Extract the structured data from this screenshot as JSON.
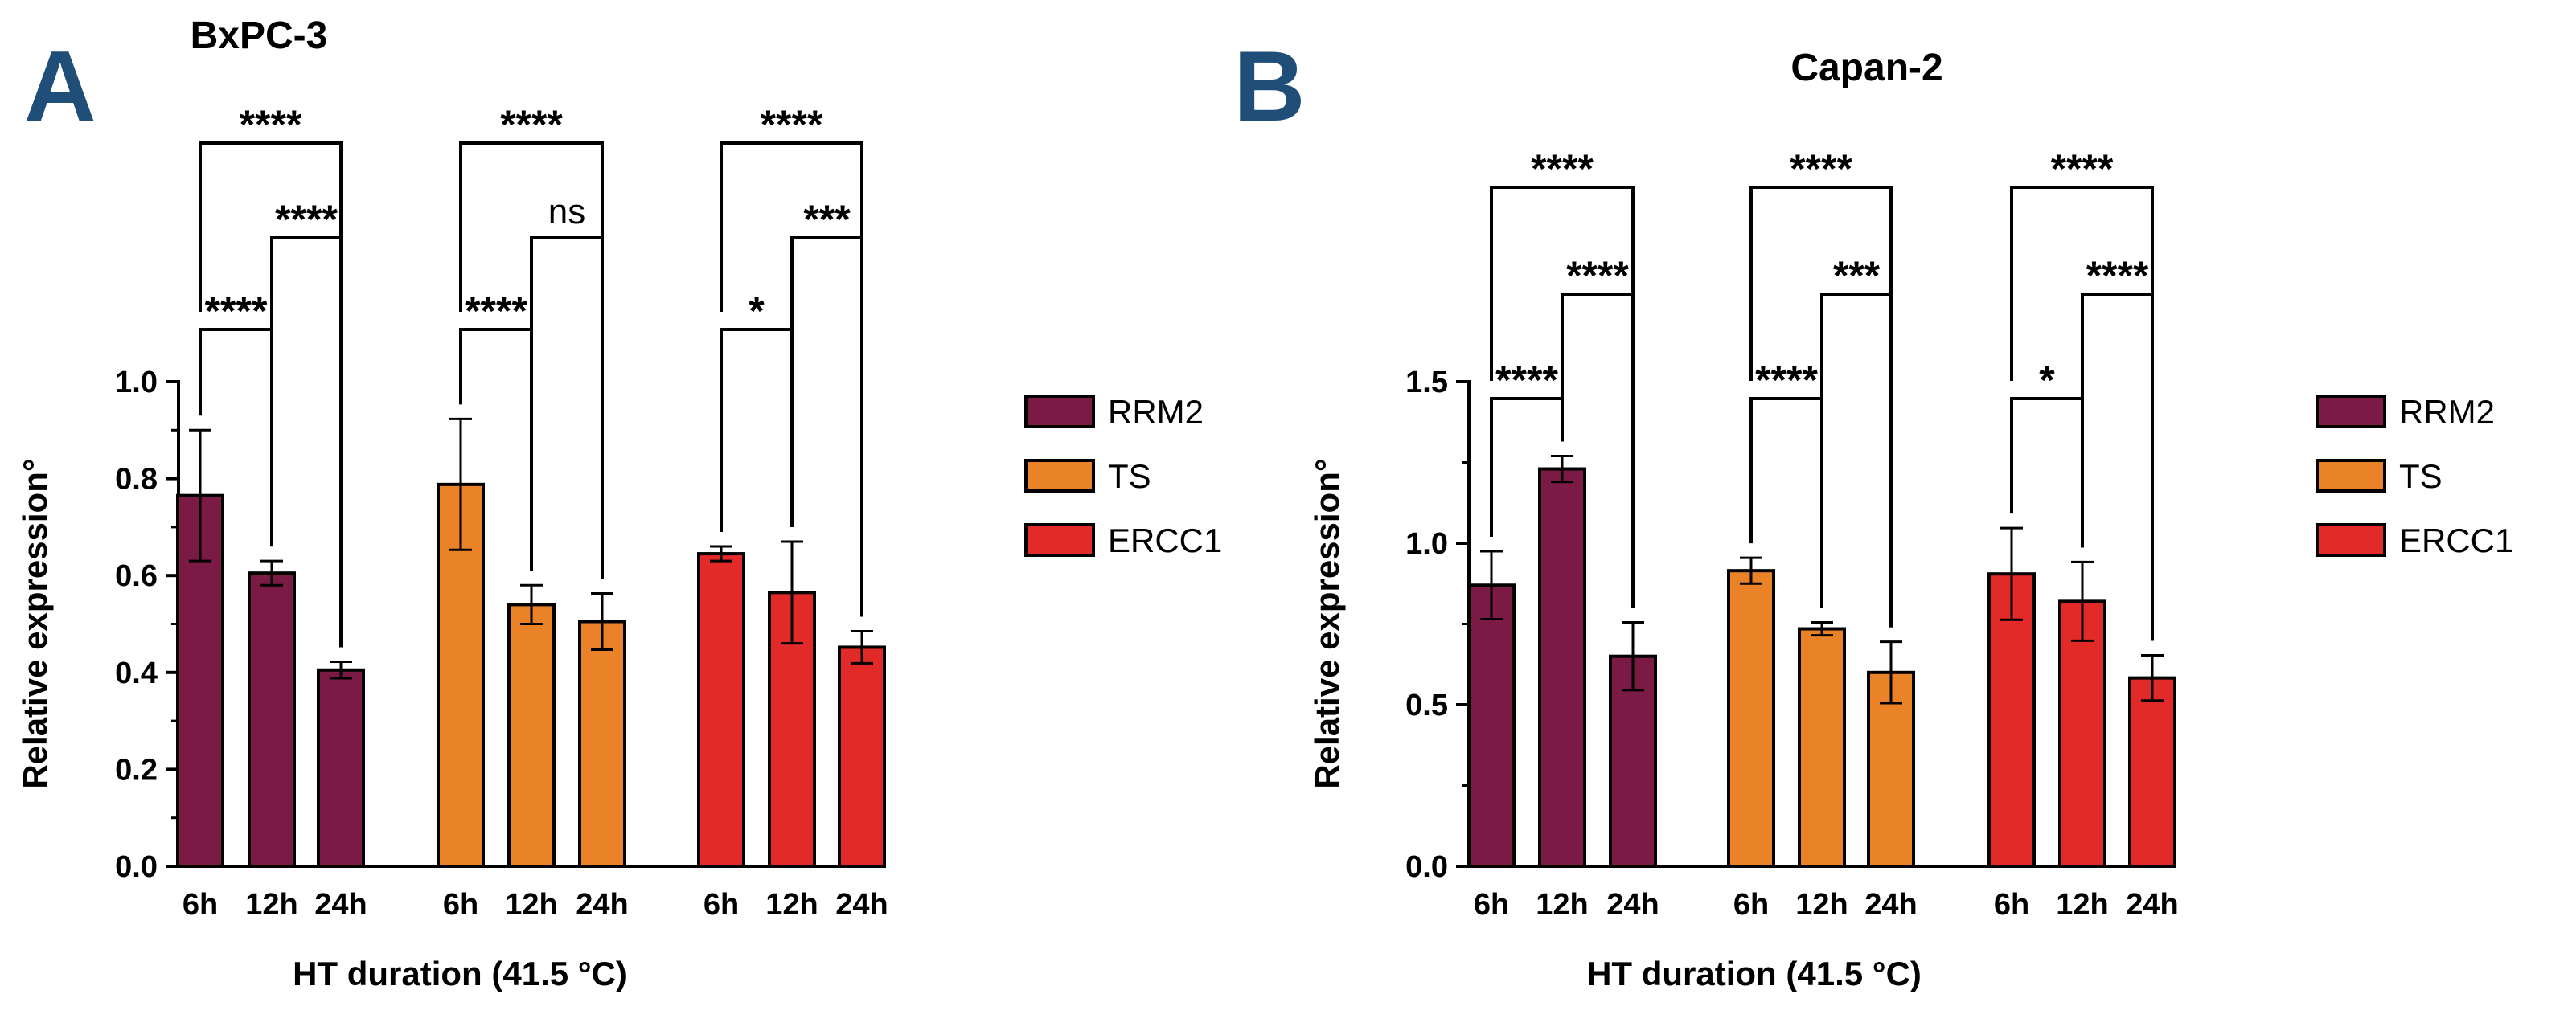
{
  "panels": [
    {
      "letter": "A",
      "chart_data": {
        "type": "bar",
        "title": "BxPC-3",
        "xlabel": "HT duration (41.5 °C)",
        "ylabel": "Relative expression°",
        "ylim": [
          0,
          1.0
        ],
        "yticks": [
          "0.0",
          "0.2",
          "0.4",
          "0.6",
          "0.8",
          "1.0"
        ],
        "categories": [
          "6h",
          "12h",
          "24h"
        ],
        "series": [
          {
            "name": "RRM2",
            "color": "#7b1a45",
            "values": [
              0.765,
              0.605,
              0.405
            ],
            "errors": [
              0.135,
              0.025,
              0.017
            ]
          },
          {
            "name": "TS",
            "color": "#ea8228",
            "values": [
              0.788,
              0.54,
              0.505
            ],
            "errors": [
              0.135,
              0.04,
              0.058
            ]
          },
          {
            "name": "ERCC1",
            "color": "#e22a28",
            "values": [
              0.645,
              0.565,
              0.452
            ],
            "errors": [
              0.015,
              0.105,
              0.033
            ]
          }
        ],
        "comparisons": [
          [
            {
              "pair": "6h vs 12h",
              "label": "****"
            },
            {
              "pair": "12h vs 24h",
              "label": "****"
            },
            {
              "pair": "6h vs 24h",
              "label": "****"
            }
          ],
          [
            {
              "pair": "6h vs 12h",
              "label": "****"
            },
            {
              "pair": "12h vs 24h",
              "label": "ns"
            },
            {
              "pair": "6h vs 24h",
              "label": "****"
            }
          ],
          [
            {
              "pair": "6h vs 12h",
              "label": "*"
            },
            {
              "pair": "12h vs 24h",
              "label": "***"
            },
            {
              "pair": "6h vs 24h",
              "label": "****"
            }
          ]
        ],
        "legend": [
          "RRM2",
          "TS",
          "ERCC1"
        ],
        "legend_position": "right"
      }
    },
    {
      "letter": "B",
      "chart_data": {
        "type": "bar",
        "title": "Capan-2",
        "xlabel": "HT duration (41.5 °C)",
        "ylabel": "Relative expression°",
        "ylim": [
          0,
          1.5
        ],
        "yticks": [
          "0.0",
          "0.5",
          "1.0",
          "1.5"
        ],
        "categories": [
          "6h",
          "12h",
          "24h"
        ],
        "series": [
          {
            "name": "RRM2",
            "color": "#7b1a45",
            "values": [
              0.87,
              1.23,
              0.65
            ],
            "errors": [
              0.105,
              0.04,
              0.105
            ]
          },
          {
            "name": "TS",
            "color": "#ea8228",
            "values": [
              0.915,
              0.735,
              0.6
            ],
            "errors": [
              0.04,
              0.02,
              0.095
            ]
          },
          {
            "name": "ERCC1",
            "color": "#e22a28",
            "values": [
              0.905,
              0.82,
              0.583
            ],
            "errors": [
              0.142,
              0.122,
              0.07
            ]
          }
        ],
        "comparisons": [
          [
            {
              "pair": "6h vs 12h",
              "label": "****"
            },
            {
              "pair": "12h vs 24h",
              "label": "****"
            },
            {
              "pair": "6h vs 24h",
              "label": "****"
            }
          ],
          [
            {
              "pair": "6h vs 12h",
              "label": "****"
            },
            {
              "pair": "12h vs 24h",
              "label": "***"
            },
            {
              "pair": "6h vs 24h",
              "label": "****"
            }
          ],
          [
            {
              "pair": "6h vs 12h",
              "label": "*"
            },
            {
              "pair": "12h vs 24h",
              "label": "****"
            },
            {
              "pair": "6h vs 24h",
              "label": "****"
            }
          ]
        ],
        "legend": [
          "RRM2",
          "TS",
          "ERCC1"
        ],
        "legend_position": "right"
      }
    }
  ]
}
